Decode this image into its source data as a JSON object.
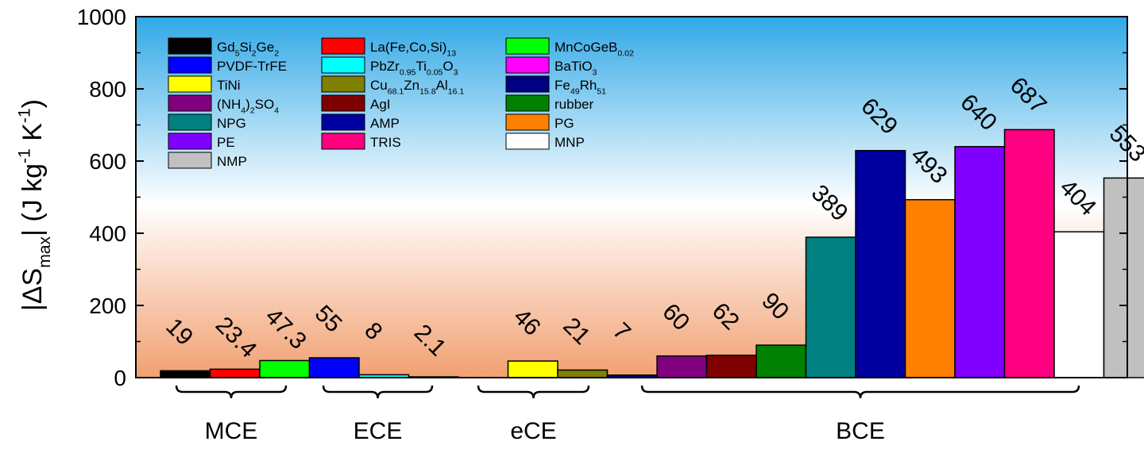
{
  "chart_data": {
    "type": "bar",
    "ylabel": "|ΔS_max| (J kg⁻¹ K⁻¹)",
    "ylabel_parts": [
      {
        "t": "|ΔS",
        "s": "n"
      },
      {
        "t": "max",
        "s": "sub"
      },
      {
        "t": "| (J kg",
        "s": "n"
      },
      {
        "t": "-1",
        "s": "sup"
      },
      {
        "t": " K",
        "s": "n"
      },
      {
        "t": "-1",
        "s": "sup"
      },
      {
        "t": ")",
        "s": "n"
      }
    ],
    "ylim": [
      0,
      1000
    ],
    "yticks": [
      "0",
      "200",
      "400",
      "600",
      "800",
      "1000"
    ],
    "background_gradient": {
      "top": "#2fa8e6",
      "middle": "#ffffff",
      "bottom": "#f1a071"
    },
    "legend_placement": "top-left",
    "series": [
      {
        "name": "Gd5Si2Ge2",
        "name_parts": [
          {
            "t": "Gd",
            "s": "n"
          },
          {
            "t": "5",
            "s": "sub"
          },
          {
            "t": "Si",
            "s": "n"
          },
          {
            "t": "2",
            "s": "sub"
          },
          {
            "t": "Ge",
            "s": "n"
          },
          {
            "t": "2",
            "s": "sub"
          }
        ],
        "color": "#000000",
        "value": 19,
        "label": "19",
        "group": "MCE"
      },
      {
        "name": "La(Fe,Co,Si)13",
        "name_parts": [
          {
            "t": "La(Fe,Co,Si)",
            "s": "n"
          },
          {
            "t": "13",
            "s": "sub"
          }
        ],
        "color": "#ff0000",
        "value": 23.4,
        "label": "23.4",
        "group": "MCE"
      },
      {
        "name": "MnCoGeB0.02",
        "name_parts": [
          {
            "t": "MnCoGeB",
            "s": "n"
          },
          {
            "t": "0.02",
            "s": "sub"
          }
        ],
        "color": "#00ff00",
        "value": 47.3,
        "label": "47.3",
        "group": "MCE"
      },
      {
        "name": "PVDF-TrFE",
        "name_parts": [
          {
            "t": "PVDF-TrFE",
            "s": "n"
          }
        ],
        "color": "#0000ff",
        "value": 55,
        "label": "55",
        "group": "ECE"
      },
      {
        "name": "PbZr0.95Ti0.05O3",
        "name_parts": [
          {
            "t": "PbZr",
            "s": "n"
          },
          {
            "t": "0.95",
            "s": "sub"
          },
          {
            "t": "Ti",
            "s": "n"
          },
          {
            "t": "0.05",
            "s": "sub"
          },
          {
            "t": "O",
            "s": "n"
          },
          {
            "t": "3",
            "s": "sub"
          }
        ],
        "color": "#00ffff",
        "value": 8,
        "label": "8",
        "group": "ECE"
      },
      {
        "name": "BaTiO3",
        "name_parts": [
          {
            "t": "BaTiO",
            "s": "n"
          },
          {
            "t": "3",
            "s": "sub"
          }
        ],
        "color": "#ff00ff",
        "value": 2.1,
        "label": "2.1",
        "group": "ECE"
      },
      {
        "name": "TiNi",
        "name_parts": [
          {
            "t": "TiNi",
            "s": "n"
          }
        ],
        "color": "#ffff00",
        "value": 46,
        "label": "46",
        "group": "eCE"
      },
      {
        "name": "Cu68.1Zn15.8Al16.1",
        "name_parts": [
          {
            "t": "Cu",
            "s": "n"
          },
          {
            "t": "68.1",
            "s": "sub"
          },
          {
            "t": "Zn",
            "s": "n"
          },
          {
            "t": "15.8",
            "s": "sub"
          },
          {
            "t": "Al",
            "s": "n"
          },
          {
            "t": "16.1",
            "s": "sub"
          }
        ],
        "color": "#808000",
        "value": 21,
        "label": "21",
        "group": "eCE"
      },
      {
        "name": "Fe49Rh51",
        "name_parts": [
          {
            "t": "Fe",
            "s": "n"
          },
          {
            "t": "49",
            "s": "sub"
          },
          {
            "t": "Rh",
            "s": "n"
          },
          {
            "t": "51",
            "s": "sub"
          }
        ],
        "color": "#000080",
        "value": 7,
        "label": "7",
        "group": "eCE"
      },
      {
        "name": "(NH4)2SO4",
        "name_parts": [
          {
            "t": "(NH",
            "s": "n"
          },
          {
            "t": "4",
            "s": "sub"
          },
          {
            "t": ")",
            "s": "n"
          },
          {
            "t": "2",
            "s": "sub"
          },
          {
            "t": "SO",
            "s": "n"
          },
          {
            "t": "4",
            "s": "sub"
          }
        ],
        "color": "#800080",
        "value": 60,
        "label": "60",
        "group": "BCE"
      },
      {
        "name": "AgI",
        "name_parts": [
          {
            "t": "AgI",
            "s": "n"
          }
        ],
        "color": "#800000",
        "value": 62,
        "label": "62",
        "group": "BCE"
      },
      {
        "name": "rubber",
        "name_parts": [
          {
            "t": "rubber",
            "s": "n"
          }
        ],
        "color": "#008000",
        "value": 90,
        "label": "90",
        "group": "BCE"
      },
      {
        "name": "NPG",
        "name_parts": [
          {
            "t": "NPG",
            "s": "n"
          }
        ],
        "color": "#008080",
        "value": 389,
        "label": "389",
        "group": "BCE"
      },
      {
        "name": "AMP",
        "name_parts": [
          {
            "t": "AMP",
            "s": "n"
          }
        ],
        "color": "#0000a0",
        "value": 629,
        "label": "629",
        "group": "BCE"
      },
      {
        "name": "PG",
        "name_parts": [
          {
            "t": "PG",
            "s": "n"
          }
        ],
        "color": "#ff8000",
        "value": 493,
        "label": "493",
        "group": "BCE"
      },
      {
        "name": "PE",
        "name_parts": [
          {
            "t": "PE",
            "s": "n"
          }
        ],
        "color": "#8000ff",
        "value": 640,
        "label": "640",
        "group": "BCE"
      },
      {
        "name": "TRIS",
        "name_parts": [
          {
            "t": "TRIS",
            "s": "n"
          }
        ],
        "color": "#ff0080",
        "value": 687,
        "label": "687",
        "group": "BCE"
      },
      {
        "name": "MNP",
        "name_parts": [
          {
            "t": "MNP",
            "s": "n"
          }
        ],
        "color": "#ffffff",
        "value": 404,
        "label": "404",
        "group": "BCE"
      },
      {
        "name": "NMP",
        "name_parts": [
          {
            "t": "NMP",
            "s": "n"
          }
        ],
        "color": "#c0c0c0",
        "value": 553,
        "label": "553",
        "group": "BCE"
      }
    ],
    "legend_columns": [
      [
        "Gd5Si2Ge2",
        "PVDF-TrFE",
        "TiNi",
        "(NH4)2SO4",
        "NPG",
        "PE",
        "NMP"
      ],
      [
        "La(Fe,Co,Si)13",
        "PbZr0.95Ti0.05O3",
        "Cu68.1Zn15.8Al16.1",
        "AgI",
        "AMP",
        "TRIS"
      ],
      [
        "MnCoGeB0.02",
        "BaTiO3",
        "Fe49Rh51",
        "rubber",
        "PG",
        "MNP"
      ]
    ],
    "groups": [
      {
        "label": "MCE"
      },
      {
        "label": "ECE"
      },
      {
        "label": "eCE"
      },
      {
        "label": "BCE"
      }
    ]
  }
}
